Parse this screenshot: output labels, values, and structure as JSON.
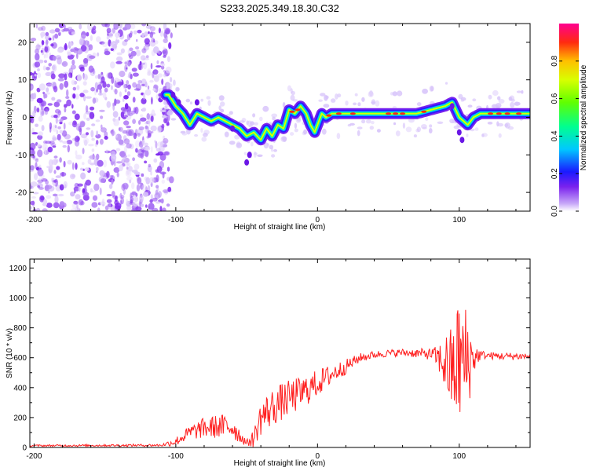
{
  "title": "S233.2025.349.18.30.C32",
  "chart_data": [
    {
      "type": "heatmap",
      "name": "spectrogram",
      "xlabel": "Height of straight line (km)",
      "ylabel": "Frequency (Hz)",
      "xlim": [
        -203,
        150
      ],
      "ylim": [
        -25,
        25
      ],
      "xticks": [
        -200,
        -100,
        0,
        100
      ],
      "yticks": [
        -20,
        -10,
        0,
        10,
        20
      ],
      "colorbar": {
        "label": "Normalized spectral amplitude",
        "range": [
          0,
          1
        ],
        "ticks": [
          0.0,
          0.2,
          0.4,
          0.6,
          0.8
        ],
        "tick_labels": [
          "0.0",
          "0.2",
          "0.4",
          "0.6",
          "0.8"
        ],
        "colormap": [
          "#ffffff",
          "#c8a8f8",
          "#7a22ee",
          "#1a1aff",
          "#00c8ff",
          "#00ff90",
          "#60ff00",
          "#d8ff00",
          "#ffc000",
          "#ff2a10",
          "#ff0090"
        ]
      },
      "ridge": {
        "x": [
          -105,
          -100,
          -95,
          -90,
          -85,
          -80,
          -75,
          -70,
          -65,
          -60,
          -55,
          -50,
          -45,
          -40,
          -36,
          -32,
          -28,
          -24,
          -20,
          -16,
          -12,
          -8,
          -5,
          -2,
          0,
          3,
          6,
          10,
          20,
          30,
          40,
          50,
          60,
          70,
          80,
          90,
          95,
          100,
          103,
          106,
          110,
          115,
          120,
          130,
          140,
          150
        ],
        "y": [
          6,
          3,
          1,
          -2,
          1,
          0,
          -1,
          0,
          -1,
          -2,
          -3,
          -5,
          -4,
          -6,
          -3,
          -5,
          -2,
          -3,
          2,
          1,
          3,
          1,
          -2,
          -4,
          -2,
          1,
          0,
          1,
          1,
          1,
          1,
          1,
          1,
          1,
          2,
          3,
          4,
          0,
          -1,
          -2,
          0,
          1,
          1,
          1,
          1,
          1
        ]
      }
    },
    {
      "type": "line",
      "name": "snr",
      "xlabel": "Height of straight line (km)",
      "ylabel": "SNR (10 * v/v)",
      "xlim": [
        -203,
        150
      ],
      "ylim": [
        0,
        1260
      ],
      "xticks": [
        -200,
        -100,
        0,
        100
      ],
      "yticks": [
        0,
        200,
        400,
        600,
        800,
        1000,
        1200
      ],
      "color": "#ff2020",
      "envelope": {
        "x": [
          -203,
          -110,
          -100,
          -90,
          -80,
          -70,
          -60,
          -55,
          -50,
          -45,
          -40,
          -30,
          -20,
          -10,
          0,
          10,
          20,
          30,
          40,
          50,
          60,
          70,
          80,
          85,
          90,
          95,
          100,
          105,
          110,
          115,
          120,
          130,
          140,
          150
        ],
        "mean": [
          12,
          15,
          40,
          100,
          130,
          140,
          140,
          80,
          30,
          60,
          200,
          280,
          330,
          370,
          430,
          490,
          540,
          600,
          620,
          630,
          635,
          630,
          625,
          600,
          560,
          500,
          580,
          560,
          600,
          620,
          615,
          610,
          610,
          610
        ],
        "amp": [
          6,
          8,
          30,
          50,
          70,
          80,
          90,
          50,
          20,
          60,
          120,
          130,
          120,
          110,
          90,
          70,
          50,
          30,
          25,
          25,
          25,
          30,
          40,
          80,
          200,
          320,
          450,
          400,
          120,
          30,
          25,
          25,
          25,
          25
        ]
      }
    }
  ]
}
